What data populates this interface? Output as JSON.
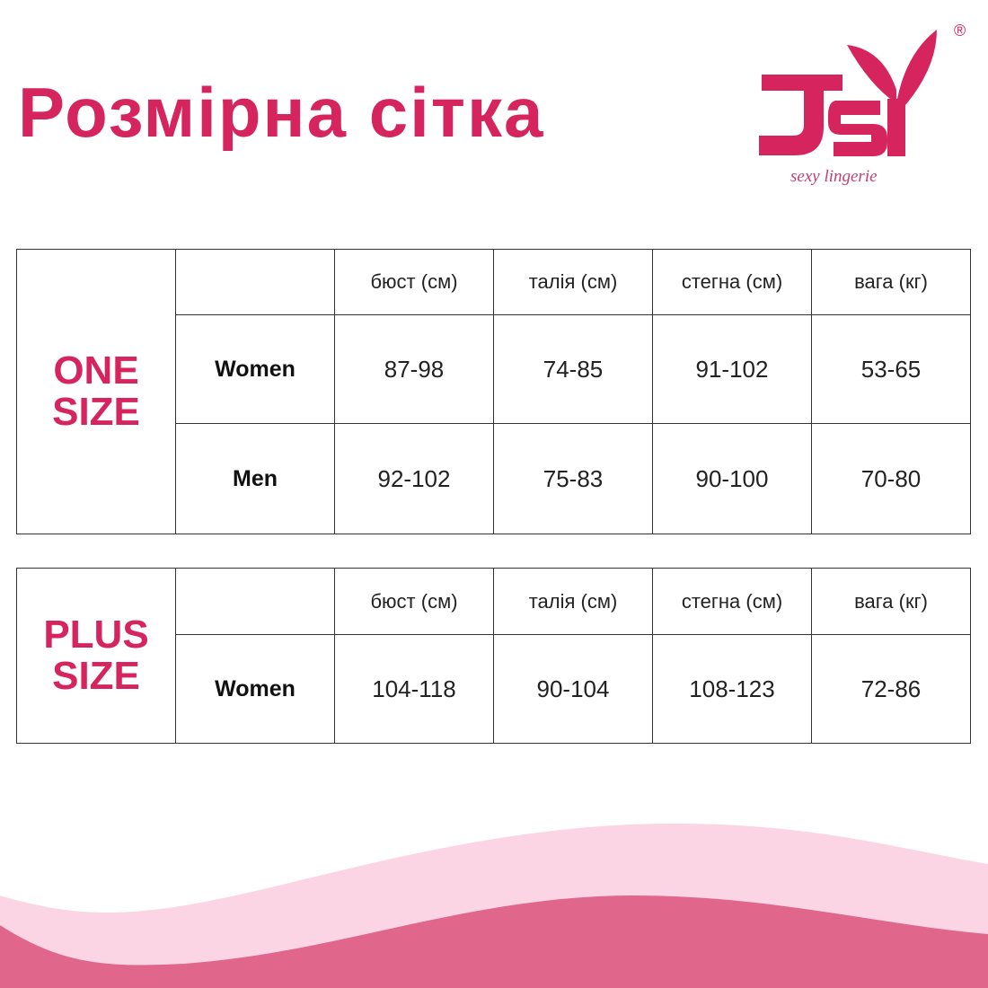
{
  "title": "Розмірна сітка",
  "logo": {
    "text": "JSY",
    "tagline": "sexy lingerie",
    "mark": "®"
  },
  "colors": {
    "accent": "#d6245f",
    "wave_light": "#fcd5e5",
    "wave_dark": "#e1668b"
  },
  "columns": [
    "бюст (см)",
    "талія (см)",
    "стегна (см)",
    "вага (кг)"
  ],
  "one_size": {
    "label_line1": "ONE",
    "label_line2": "SIZE",
    "rows": [
      {
        "label": "Women",
        "values": [
          "87-98",
          "74-85",
          "91-102",
          "53-65"
        ]
      },
      {
        "label": "Men",
        "values": [
          "92-102",
          "75-83",
          "90-100",
          "70-80"
        ]
      }
    ]
  },
  "plus_size": {
    "label_line1": "PLUS",
    "label_line2": "SIZE",
    "rows": [
      {
        "label": "Women",
        "values": [
          "104-118",
          "90-104",
          "108-123",
          "72-86"
        ]
      }
    ]
  }
}
